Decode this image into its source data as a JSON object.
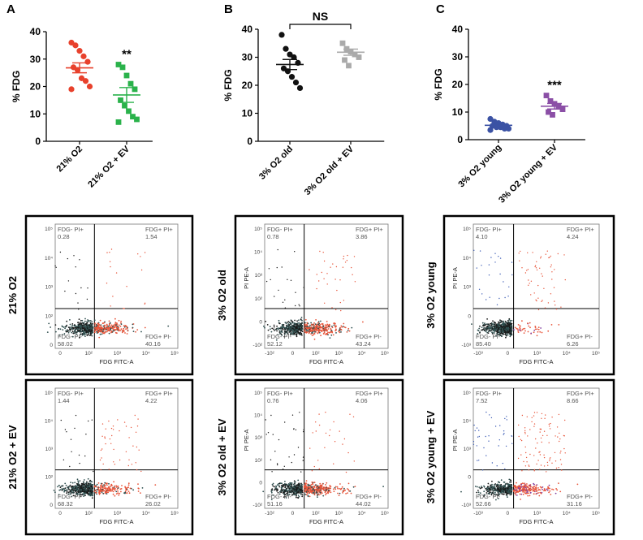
{
  "panel_letters": [
    "A",
    "B",
    "C"
  ],
  "scatter_charts": [
    {
      "letter": "A",
      "ylabel": "% FDG",
      "ylim": [
        0,
        40
      ],
      "yticks": [
        0,
        10,
        20,
        30,
        40
      ],
      "significance": "**",
      "bracket_label": "",
      "groups": [
        {
          "label": "21% O2",
          "color": "#e8412c",
          "marker": "circle",
          "values": [
            36,
            35,
            33,
            31,
            29,
            27,
            26,
            23,
            22,
            20,
            19
          ],
          "mean": 26.8,
          "sem": 1.8
        },
        {
          "label": "21% O2 + EV",
          "color": "#2ab24b",
          "marker": "square",
          "values": [
            28,
            27,
            24,
            21,
            19,
            15,
            13,
            11,
            9,
            8,
            7
          ],
          "mean": 16.9,
          "sem": 2.7
        }
      ]
    },
    {
      "letter": "B",
      "ylabel": "% FDG",
      "ylim": [
        0,
        40
      ],
      "yticks": [
        0,
        10,
        20,
        30,
        40
      ],
      "significance": "",
      "bracket_label": "NS",
      "groups": [
        {
          "label": "3% O2 old",
          "color": "#111111",
          "marker": "circle",
          "values": [
            38,
            33,
            31,
            30,
            28,
            26,
            25,
            23,
            21,
            19
          ],
          "mean": 27.4,
          "sem": 1.8
        },
        {
          "label": "3% O2 old + EV",
          "color": "#aaaaaa",
          "marker": "square",
          "values": [
            35,
            33,
            32,
            31,
            30,
            29,
            27
          ],
          "mean": 31.8,
          "sem": 1.1
        }
      ]
    },
    {
      "letter": "C",
      "ylabel": "% FDG",
      "ylim": [
        0,
        40
      ],
      "yticks": [
        0,
        10,
        20,
        30,
        40
      ],
      "significance": "***",
      "bracket_label": "",
      "groups": [
        {
          "label": "3% O2 young",
          "color": "#3b52a4",
          "marker": "circle",
          "values": [
            7.5,
            6.5,
            6,
            5.5,
            5,
            5,
            4.5,
            4.5,
            4,
            4,
            3.5
          ],
          "mean": 5.2,
          "sem": 0.4
        },
        {
          "label": "3% O2 young + EV",
          "color": "#8b4fa6",
          "marker": "square",
          "values": [
            16,
            14,
            13,
            12,
            11,
            10,
            9
          ],
          "mean": 12.1,
          "sem": 1.0
        }
      ]
    }
  ],
  "flow_plots": [
    {
      "row_label": "21% O2",
      "col": 0,
      "row": 0,
      "q_ul": {
        "title": "FDG- PI+",
        "value": "0.28"
      },
      "q_ur": {
        "title": "FDG+ PI+",
        "value": "1.54"
      },
      "q_ll": {
        "title": "FDG- PI-",
        "value": "58.02"
      },
      "q_lr": {
        "title": "FDG+ PI-",
        "value": "40.16"
      },
      "xlabel": "FDG FITC-A",
      "ylabel": "",
      "xticks": [
        "0",
        "10²",
        "10³",
        "10⁴",
        "10⁵"
      ],
      "yticks": [
        "0",
        "10²",
        "10³",
        "10⁴",
        "10⁵"
      ]
    },
    {
      "row_label": "21% O2 + EV",
      "col": 0,
      "row": 1,
      "q_ul": {
        "title": "FDG- PI+",
        "value": "1.44"
      },
      "q_ur": {
        "title": "FDG+ PI+",
        "value": "4.22"
      },
      "q_ll": {
        "title": "FDG- PI-",
        "value": "68.32"
      },
      "q_lr": {
        "title": "FDG+ PI-",
        "value": "26.02"
      },
      "xlabel": "FDG FITC-A",
      "ylabel": "",
      "xticks": [
        "0",
        "10²",
        "10³",
        "10⁴",
        "10⁵"
      ],
      "yticks": [
        "0",
        "10²",
        "10³",
        "10⁴",
        "10⁵"
      ]
    },
    {
      "row_label": "3% O2 old",
      "col": 1,
      "row": 0,
      "q_ul": {
        "title": "FDG- PI+",
        "value": "0.78"
      },
      "q_ur": {
        "title": "FDG+ PI+",
        "value": "3.86"
      },
      "q_ll": {
        "title": "FDG- PI-",
        "value": "52.12"
      },
      "q_lr": {
        "title": "FDG+ PI-",
        "value": "43.24"
      },
      "xlabel": "FDG FITC-A",
      "ylabel": "PI PE-A",
      "xticks": [
        "-10²",
        "0",
        "10²",
        "10³",
        "10⁴",
        "10⁵"
      ],
      "yticks": [
        "-10²",
        "0",
        "10²",
        "10³",
        "10⁴",
        "10⁵"
      ]
    },
    {
      "row_label": "3% O2 old + EV",
      "col": 1,
      "row": 1,
      "q_ul": {
        "title": "FDG- PI+",
        "value": "0.76"
      },
      "q_ur": {
        "title": "FDG+ PI+",
        "value": "4.06"
      },
      "q_ll": {
        "title": "FDG- PI-",
        "value": "51.16"
      },
      "q_lr": {
        "title": "FDG+ PI-",
        "value": "44.02"
      },
      "xlabel": "FDG FITC-A",
      "ylabel": "PI PE-A",
      "xticks": [
        "-10²",
        "0",
        "10²",
        "10³",
        "10⁴",
        "10⁵"
      ],
      "yticks": [
        "-10²",
        "0",
        "10²",
        "10³",
        "10⁴",
        "10⁵"
      ]
    },
    {
      "row_label": "3% O2 young",
      "col": 2,
      "row": 0,
      "q_ul": {
        "title": "FDG- PI+",
        "value": "4.10"
      },
      "q_ur": {
        "title": "FDG+ PI+",
        "value": "4.24"
      },
      "q_ll": {
        "title": "FDG- PI-",
        "value": "85.40"
      },
      "q_lr": {
        "title": "FDG+ PI-",
        "value": "6.26"
      },
      "xlabel": "FDG FITC-A",
      "ylabel": "PI PE-A",
      "xticks": [
        "-10³",
        "0",
        "10³",
        "10⁴",
        "10⁵"
      ],
      "yticks": [
        "-10³",
        "0",
        "10³",
        "10⁴",
        "10⁵"
      ]
    },
    {
      "row_label": "3% O2 young + EV",
      "col": 2,
      "row": 1,
      "q_ul": {
        "title": "FDG- PI+",
        "value": "7.52"
      },
      "q_ur": {
        "title": "FDG+ PI+",
        "value": "8.66"
      },
      "q_ll": {
        "title": "FDG- PI-",
        "value": "52.66"
      },
      "q_lr": {
        "title": "FDG+ PI-",
        "value": "31.16"
      },
      "xlabel": "FDG FITC-A",
      "ylabel": "PI PE-A",
      "xticks": [
        "-10³",
        "0",
        "10³",
        "10⁴",
        "10⁵"
      ],
      "yticks": [
        "-10³",
        "0",
        "10³",
        "10⁴",
        "10⁵"
      ]
    }
  ],
  "colors": {
    "flow_negative_core": "#2f4f4f",
    "flow_dark": "#1a1a1a",
    "flow_positive": "#e8553a",
    "flow_blue": "#3b5bb5",
    "flow_purple": "#8040a0"
  },
  "chart_data": [
    {
      "type": "scatter",
      "title": "",
      "xlabel": "",
      "ylabel": "% FDG",
      "ylim": [
        0,
        40
      ],
      "categories": [
        "21% O2",
        "21% O2 + EV"
      ],
      "series": [
        {
          "name": "21% O2",
          "values": [
            36,
            35,
            33,
            31,
            29,
            27,
            26,
            23,
            22,
            20,
            19
          ]
        },
        {
          "name": "21% O2 + EV",
          "values": [
            28,
            27,
            24,
            21,
            19,
            15,
            13,
            11,
            9,
            8,
            7
          ]
        }
      ],
      "annotations": [
        "**"
      ]
    },
    {
      "type": "scatter",
      "title": "",
      "xlabel": "",
      "ylabel": "% FDG",
      "ylim": [
        0,
        40
      ],
      "categories": [
        "3% O2 old",
        "3% O2 old + EV"
      ],
      "series": [
        {
          "name": "3% O2 old",
          "values": [
            38,
            33,
            31,
            30,
            28,
            26,
            25,
            23,
            21,
            19
          ]
        },
        {
          "name": "3% O2 old + EV",
          "values": [
            35,
            33,
            32,
            31,
            30,
            29,
            27
          ]
        }
      ],
      "annotations": [
        "NS"
      ]
    },
    {
      "type": "scatter",
      "title": "",
      "xlabel": "",
      "ylabel": "% FDG",
      "ylim": [
        0,
        40
      ],
      "categories": [
        "3% O2 young",
        "3% O2 young + EV"
      ],
      "series": [
        {
          "name": "3% O2 young",
          "values": [
            7.5,
            6.5,
            6,
            5.5,
            5,
            5,
            4.5,
            4.5,
            4,
            4,
            3.5
          ]
        },
        {
          "name": "3% O2 young + EV",
          "values": [
            16,
            14,
            13,
            12,
            11,
            10,
            9
          ]
        }
      ],
      "annotations": [
        "***"
      ]
    }
  ]
}
